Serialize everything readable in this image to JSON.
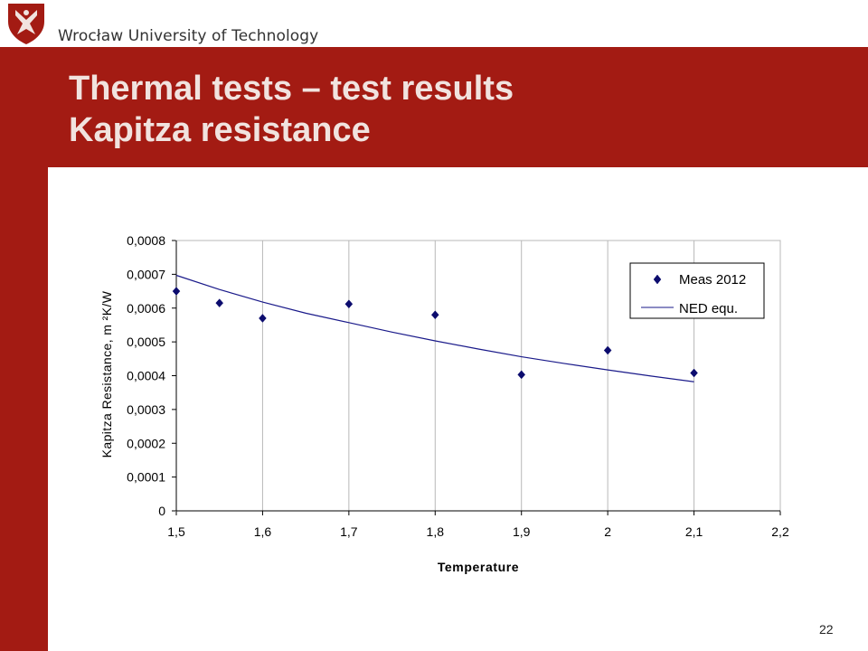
{
  "header": {
    "university_name": "Wrocław University of Technology"
  },
  "slide": {
    "title_line1": "Thermal tests – test results",
    "title_line2": "Kapitza resistance",
    "page_number": "22"
  },
  "colors": {
    "brand_red": "#a31b13",
    "title_text": "#f1e3df",
    "series_marker": "#0c0c6e",
    "series_line": "#1a1a8a"
  },
  "icons": {
    "logo": "university-crest-icon"
  },
  "chart_data": {
    "type": "scatter",
    "title": "",
    "xlabel": "Temperature",
    "ylabel": "Kapitza Resistance, m ²K/W",
    "xlim": [
      1.5,
      2.2
    ],
    "ylim": [
      0,
      0.0008
    ],
    "x_ticks": [
      "1,5",
      "1,6",
      "1,7",
      "1,8",
      "1,9",
      "2",
      "2,1",
      "2,2"
    ],
    "y_ticks": [
      "0",
      "0,0001",
      "0,0002",
      "0,0003",
      "0,0004",
      "0,0005",
      "0,0006",
      "0,0007",
      "0,0008"
    ],
    "grid": "vertical",
    "legend_position": "top-right",
    "series": [
      {
        "name": "Meas 2012",
        "kind": "markers",
        "marker": "diamond",
        "x": [
          1.5,
          1.55,
          1.6,
          1.7,
          1.8,
          1.9,
          2.0,
          2.1
        ],
        "y": [
          0.00065,
          0.000615,
          0.00057,
          0.000612,
          0.00058,
          0.000403,
          0.000475,
          0.000408
        ]
      },
      {
        "name": "NED equ.",
        "kind": "line",
        "x": [
          1.5,
          1.55,
          1.6,
          1.65,
          1.7,
          1.75,
          1.8,
          1.85,
          1.9,
          1.95,
          2.0,
          2.05,
          2.1
        ],
        "y": [
          0.000697,
          0.000655,
          0.000618,
          0.000585,
          0.000557,
          0.000529,
          0.000503,
          0.000479,
          0.000456,
          0.000436,
          0.000417,
          0.000399,
          0.000382
        ]
      }
    ]
  }
}
